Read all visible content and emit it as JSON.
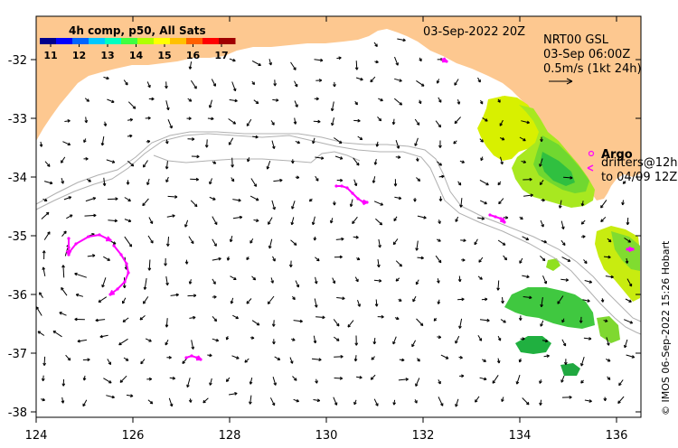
{
  "colorbar": {
    "title": "4h comp, p50, All Sats",
    "ticks": [
      "11",
      "12",
      "13",
      "14",
      "15",
      "16",
      "17"
    ],
    "colors": [
      "#00008b",
      "#0000ff",
      "#0064ff",
      "#00c8ff",
      "#00ffc0",
      "#40ff40",
      "#b0ff00",
      "#ffff00",
      "#ffc000",
      "#ff6000",
      "#ff0000",
      "#a00000"
    ]
  },
  "timestamp": "03-Sep-2022 20Z",
  "currents": {
    "model": "NRT00 GSL",
    "time": "03-Sep 06:00Z",
    "scale": "0.5m/s (1kt 24h)"
  },
  "argo": {
    "label": "Argo",
    "drifters_line1": "drifters@12h",
    "drifters_line2": "to 04/09 12Z"
  },
  "credit": "© IMOS 06-Sep-2022 15:26 Hobart",
  "axes": {
    "x_ticks": [
      "124",
      "126",
      "128",
      "130",
      "132",
      "134",
      "136"
    ],
    "y_ticks": [
      "-32",
      "-33",
      "-34",
      "-35",
      "-36",
      "-37",
      "-38"
    ]
  },
  "colors": {
    "land": "#fdc890",
    "shelf_contour": "#b0b0b0",
    "argo": "#ff00ff",
    "vector": "#000000"
  }
}
